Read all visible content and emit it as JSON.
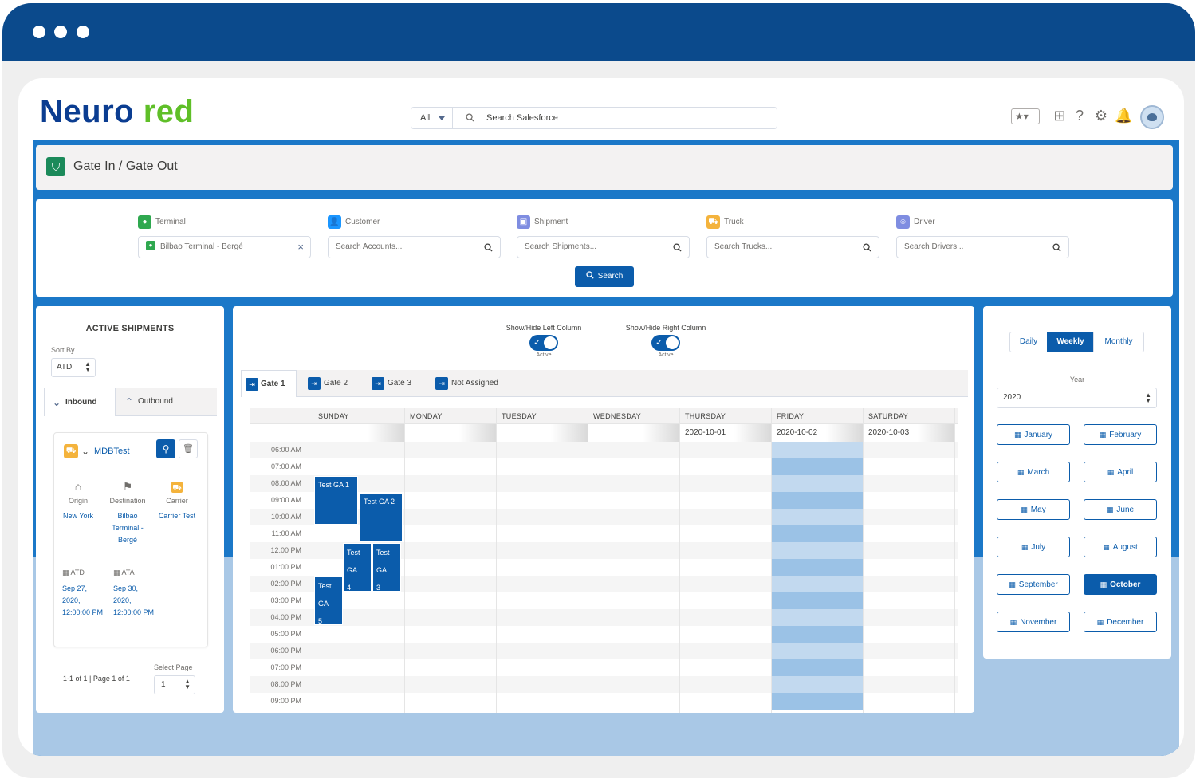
{
  "app": {
    "logo_part1": "Neuro",
    "logo_part2": " red",
    "search_scope": "All",
    "search_placeholder": "Search Salesforce"
  },
  "page": {
    "title": "Gate In / Gate Out"
  },
  "filters": [
    {
      "label": "Terminal",
      "value": "Bilbao Terminal - Bergé",
      "color": "#2fa84f",
      "icon": "map-pin-icon"
    },
    {
      "label": "Customer",
      "placeholder": "Search Accounts...",
      "color": "#1b96ff",
      "icon": "user-icon"
    },
    {
      "label": "Shipment",
      "placeholder": "Search Shipments...",
      "color": "#7f8de1",
      "icon": "box-icon"
    },
    {
      "label": "Truck",
      "placeholder": "Search Trucks...",
      "color": "#f4b33c",
      "icon": "truck-icon"
    },
    {
      "label": "Driver",
      "placeholder": "Search Drivers...",
      "color": "#7f8de1",
      "icon": "driver-icon"
    }
  ],
  "search_button": "Search",
  "left": {
    "title": "ACTIVE SHIPMENTS",
    "sort_label": "Sort By",
    "sort_value": "ATD",
    "tabs": [
      "Inbound",
      "Outbound"
    ],
    "shipment": {
      "name": "MDBTest",
      "origin_label": "Origin",
      "origin": "New York",
      "destination_label": "Destination",
      "destination": "Bilbao Terminal - Bergé",
      "carrier_label": "Carrier",
      "carrier": "Carrier Test",
      "atd_label": "ATD",
      "atd": "Sep 27, 2020, 12:00:00 PM",
      "ata_label": "ATA",
      "ata": "Sep 30, 2020, 12:00:00 PM"
    },
    "pager_info": "1-1 of 1 | Page 1 of 1",
    "pager_label": "Select Page",
    "pager_value": "1"
  },
  "center": {
    "toggle_left_label": "Show/Hide Left Column",
    "toggle_right_label": "Show/Hide Right Column",
    "toggle_state": "Active",
    "gate_tabs": [
      "Gate 1",
      "Gate 2",
      "Gate 3",
      "Not Assigned"
    ],
    "days": [
      "SUNDAY",
      "MONDAY",
      "TUESDAY",
      "WEDNESDAY",
      "THURSDAY",
      "FRIDAY",
      "SATURDAY"
    ],
    "dates": [
      "",
      "",
      "",
      "",
      "2020-10-01",
      "2020-10-02",
      "2020-10-03"
    ],
    "times": [
      "06:00 AM",
      "07:00 AM",
      "08:00 AM",
      "09:00 AM",
      "10:00 AM",
      "11:00 AM",
      "12:00 PM",
      "01:00 PM",
      "02:00 PM",
      "03:00 PM",
      "04:00 PM",
      "05:00 PM",
      "06:00 PM",
      "07:00 PM",
      "08:00 PM",
      "09:00 PM"
    ],
    "events": [
      {
        "label": "Test GA 1",
        "start_hour": 8,
        "end_hour": 11,
        "lane": 0
      },
      {
        "label": "Test GA 2",
        "start_hour": 9,
        "end_hour": 12,
        "lane": 1
      },
      {
        "label": "Test GA 4",
        "start_hour": 12,
        "end_hour": 15,
        "lane": 2
      },
      {
        "label": "Test GA 3",
        "start_hour": 12,
        "end_hour": 15,
        "lane": 3
      },
      {
        "label": "Test GA 5",
        "start_hour": 14,
        "end_hour": 17,
        "lane": 4
      }
    ]
  },
  "right": {
    "views": [
      "Daily",
      "Weekly",
      "Monthly"
    ],
    "active_view": "Weekly",
    "year_label": "Year",
    "year": "2020",
    "months": [
      "January",
      "February",
      "March",
      "April",
      "May",
      "June",
      "July",
      "August",
      "September",
      "October",
      "November",
      "December"
    ],
    "active_month": "October"
  },
  "colors": {
    "brand_blue": "#0b5cab",
    "window_bar": "#0b4a8c",
    "logo_green": "#5fbf28"
  }
}
